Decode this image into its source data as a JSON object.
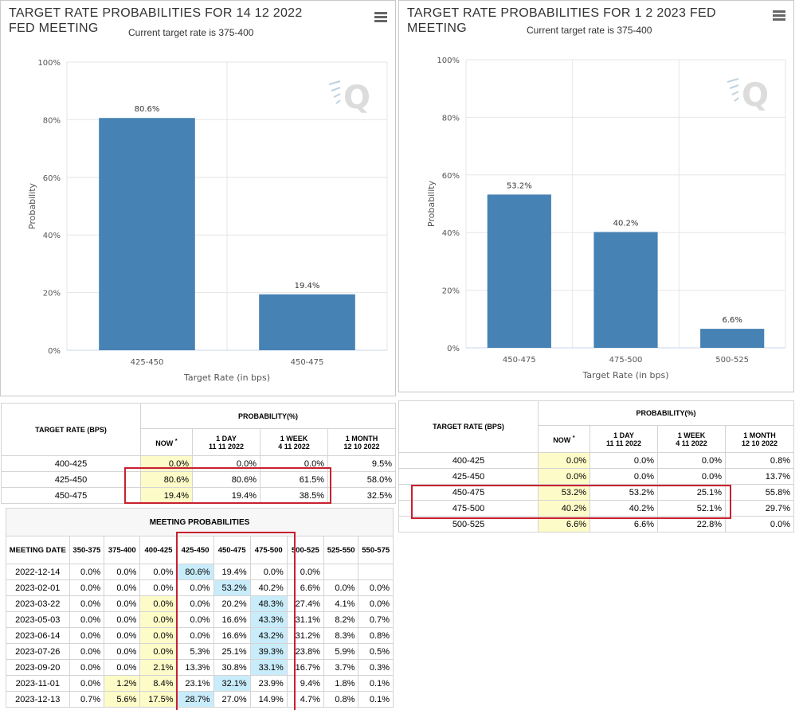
{
  "colors": {
    "bar": "#4682b4",
    "now_highlight": "#fdfbc8",
    "max_highlight": "#c9ecfa",
    "annotation": "#c8202f"
  },
  "chart_left": {
    "title": "TARGET RATE PROBABILITIES FOR 14 12 2022 FED MEETING",
    "subtitle": "Current target rate is 375-400",
    "menu_icon": "hamburger-menu-icon",
    "watermark": "Q"
  },
  "chart_right": {
    "title": "TARGET RATE PROBABILITIES FOR 1 2 2023 FED MEETING",
    "subtitle": "Current target rate is 375-400",
    "menu_icon": "hamburger-menu-icon",
    "watermark": "Q"
  },
  "chart_data": [
    {
      "type": "bar",
      "title": "TARGET RATE PROBABILITIES FOR 14 12 2022 FED MEETING",
      "subtitle": "Current target rate is 375-400",
      "categories": [
        "425-450",
        "450-475"
      ],
      "values": [
        80.6,
        19.4
      ],
      "value_labels": [
        "80.6%",
        "19.4%"
      ],
      "xlabel": "Target Rate (in bps)",
      "ylabel": "Probability",
      "ylim": [
        0,
        100
      ],
      "yticks": [
        "0%",
        "20%",
        "40%",
        "60%",
        "80%",
        "100%"
      ],
      "grid": true
    },
    {
      "type": "bar",
      "title": "TARGET RATE PROBABILITIES FOR 1 2 2023 FED MEETING",
      "subtitle": "Current target rate is 375-400",
      "categories": [
        "450-475",
        "475-500",
        "500-525"
      ],
      "values": [
        53.2,
        40.2,
        6.6
      ],
      "value_labels": [
        "53.2%",
        "40.2%",
        "6.6%"
      ],
      "xlabel": "Target Rate (in bps)",
      "ylabel": "Probability",
      "ylim": [
        0,
        100
      ],
      "yticks": [
        "0%",
        "20%",
        "40%",
        "60%",
        "80%",
        "100%"
      ],
      "grid": true
    }
  ],
  "table_left": {
    "header_rate": "TARGET RATE (BPS)",
    "header_prob": "PROBABILITY(%)",
    "cols": [
      {
        "l1": "NOW",
        "l2": "*"
      },
      {
        "l1": "1 DAY",
        "l2": "11 11 2022"
      },
      {
        "l1": "1 WEEK",
        "l2": "4 11 2022"
      },
      {
        "l1": "1 MONTH",
        "l2": "12 10 2022"
      }
    ],
    "rows": [
      [
        "400-425",
        "0.0%",
        "0.0%",
        "0.0%",
        "9.5%"
      ],
      [
        "425-450",
        "80.6%",
        "80.6%",
        "61.5%",
        "58.0%"
      ],
      [
        "450-475",
        "19.4%",
        "19.4%",
        "38.5%",
        "32.5%"
      ]
    ]
  },
  "table_right": {
    "header_rate": "TARGET RATE (BPS)",
    "header_prob": "PROBABILITY(%)",
    "cols": [
      {
        "l1": "NOW",
        "l2": "*"
      },
      {
        "l1": "1 DAY",
        "l2": "11 11 2022"
      },
      {
        "l1": "1 WEEK",
        "l2": "4 11 2022"
      },
      {
        "l1": "1 MONTH",
        "l2": "12 10 2022"
      }
    ],
    "rows": [
      [
        "400-425",
        "0.0%",
        "0.0%",
        "0.0%",
        "0.8%"
      ],
      [
        "425-450",
        "0.0%",
        "0.0%",
        "0.0%",
        "13.7%"
      ],
      [
        "450-475",
        "53.2%",
        "53.2%",
        "25.1%",
        "55.8%"
      ],
      [
        "475-500",
        "40.2%",
        "40.2%",
        "52.1%",
        "29.7%"
      ],
      [
        "500-525",
        "6.6%",
        "6.6%",
        "22.8%",
        "0.0%"
      ]
    ]
  },
  "meeting_table": {
    "title": "MEETING PROBABILITIES",
    "headers": [
      "MEETING DATE",
      "350-375",
      "375-400",
      "400-425",
      "425-450",
      "450-475",
      "475-500",
      "500-525",
      "525-550",
      "550-575"
    ],
    "rows": [
      [
        "2022-12-14",
        "0.0%",
        "0.0%",
        "0.0%",
        "80.6%",
        "19.4%",
        "0.0%",
        "0.0%",
        "",
        ""
      ],
      [
        "2023-02-01",
        "0.0%",
        "0.0%",
        "0.0%",
        "0.0%",
        "53.2%",
        "40.2%",
        "6.6%",
        "0.0%",
        "0.0%"
      ],
      [
        "2023-03-22",
        "0.0%",
        "0.0%",
        "0.0%",
        "0.0%",
        "20.2%",
        "48.3%",
        "27.4%",
        "4.1%",
        "0.0%"
      ],
      [
        "2023-05-03",
        "0.0%",
        "0.0%",
        "0.0%",
        "0.0%",
        "16.6%",
        "43.3%",
        "31.1%",
        "8.2%",
        "0.7%"
      ],
      [
        "2023-06-14",
        "0.0%",
        "0.0%",
        "0.0%",
        "0.0%",
        "16.6%",
        "43.2%",
        "31.2%",
        "8.3%",
        "0.8%"
      ],
      [
        "2023-07-26",
        "0.0%",
        "0.0%",
        "0.0%",
        "5.3%",
        "25.1%",
        "39.3%",
        "23.8%",
        "5.9%",
        "0.5%"
      ],
      [
        "2023-09-20",
        "0.0%",
        "0.0%",
        "2.1%",
        "13.3%",
        "30.8%",
        "33.1%",
        "16.7%",
        "3.7%",
        "0.3%"
      ],
      [
        "2023-11-01",
        "0.0%",
        "1.2%",
        "8.4%",
        "23.1%",
        "32.1%",
        "23.9%",
        "9.4%",
        "1.8%",
        "0.1%"
      ],
      [
        "2023-12-13",
        "0.7%",
        "5.6%",
        "17.5%",
        "28.7%",
        "27.0%",
        "14.9%",
        "4.7%",
        "0.8%",
        "0.1%"
      ]
    ],
    "highlights": [
      [
        0,
        0,
        0,
        2,
        0,
        0,
        0,
        0,
        0
      ],
      [
        0,
        0,
        0,
        0,
        2,
        0,
        0,
        0,
        0
      ],
      [
        0,
        0,
        1,
        0,
        0,
        2,
        0,
        0,
        0
      ],
      [
        0,
        0,
        1,
        0,
        0,
        2,
        0,
        0,
        0
      ],
      [
        0,
        0,
        1,
        0,
        0,
        2,
        0,
        0,
        0
      ],
      [
        0,
        0,
        1,
        0,
        0,
        2,
        0,
        0,
        0
      ],
      [
        0,
        0,
        1,
        0,
        0,
        2,
        0,
        0,
        0
      ],
      [
        0,
        1,
        1,
        0,
        2,
        0,
        0,
        0,
        0
      ],
      [
        0,
        1,
        1,
        2,
        0,
        0,
        0,
        0,
        0
      ]
    ]
  }
}
